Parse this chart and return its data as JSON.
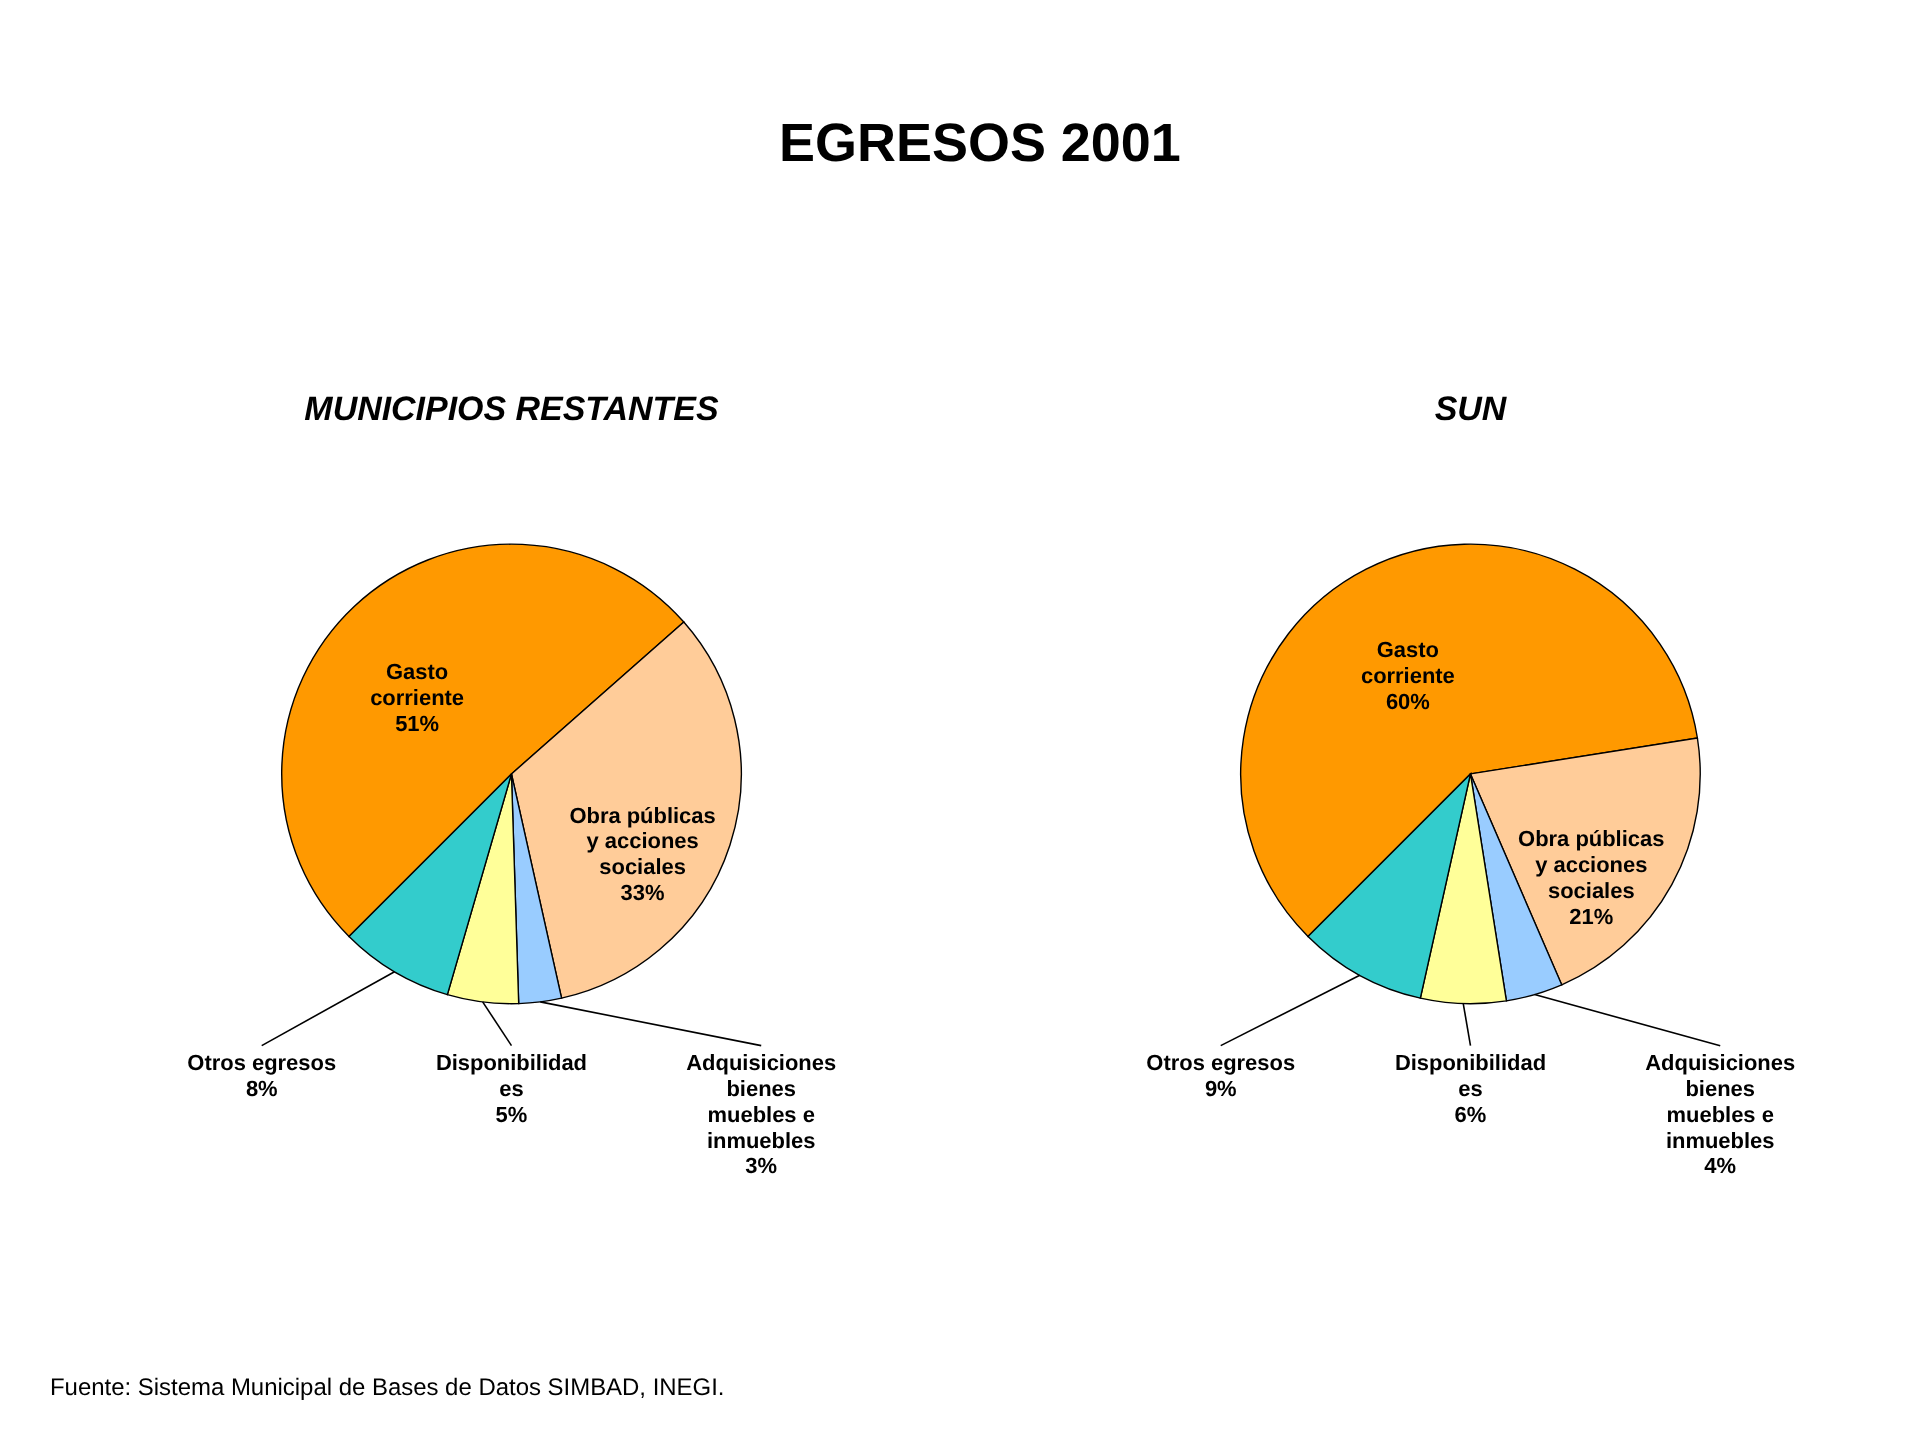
{
  "chart_data": [
    {
      "type": "pie",
      "title": "EGRESOS 2001",
      "subtitle": "MUNICIPIOS RESTANTES",
      "categories": [
        "Gasto\ncorriente",
        "Obra públicas\ny acciones\nsociales",
        "Adquisiciones\nbienes\nmuebles e\ninmuebles",
        "Disponibilidad\nes",
        "Otros egresos"
      ],
      "values": [
        51,
        33,
        3,
        5,
        8
      ],
      "value_labels": [
        "51%",
        "33%",
        "3%",
        "5%",
        "8%"
      ],
      "colors": [
        "#ff9900",
        "#ffcc99",
        "#99ccff",
        "#ffff99",
        "#33cccc"
      ],
      "annotations": [
        "Fuente: Sistema Municipal de Bases de Datos SIMBAD, INEGI."
      ]
    },
    {
      "type": "pie",
      "subtitle": "SUN",
      "categories": [
        "Gasto\ncorriente",
        "Obra públicas\ny acciones\nsociales",
        "Adquisiciones\nbienes\nmuebles e\ninmuebles",
        "Disponibilidad\nes",
        "Otros egresos"
      ],
      "values": [
        60,
        21,
        4,
        6,
        9
      ],
      "value_labels": [
        "60%",
        "21%",
        "4%",
        "6%",
        "9%"
      ],
      "colors": [
        "#ff9900",
        "#ffcc99",
        "#99ccff",
        "#ffff99",
        "#33cccc"
      ]
    }
  ]
}
